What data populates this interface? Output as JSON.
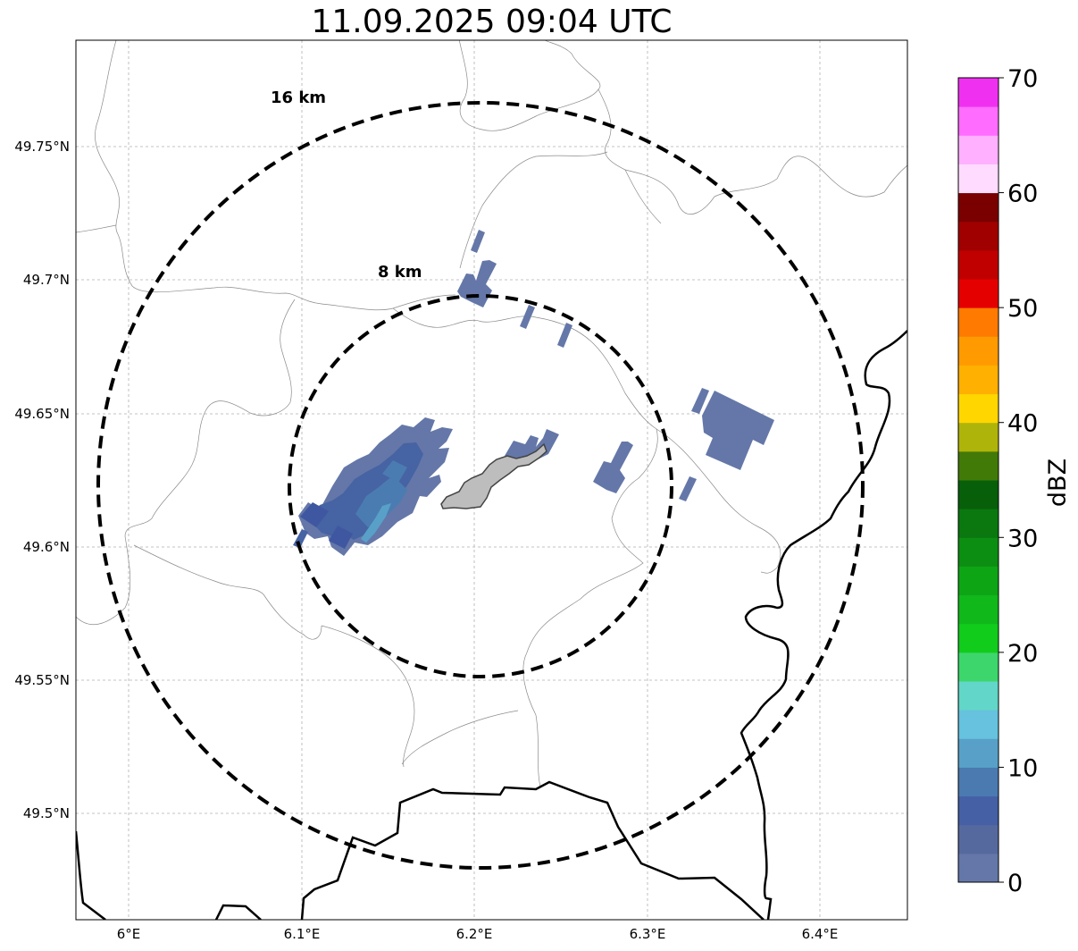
{
  "title": "11.09.2025 09:04 UTC",
  "map": {
    "lon_ticks": [
      "6°E",
      "6.1°E",
      "6.2°E",
      "6.3°E",
      "6.4°E"
    ],
    "lat_ticks": [
      "49.75°N",
      "49.7°N",
      "49.65°N",
      "49.6°N",
      "49.55°N",
      "49.5°N"
    ],
    "range_rings": [
      {
        "label": "8 km",
        "radius_km": 8
      },
      {
        "label": "16 km",
        "radius_km": 16
      }
    ],
    "colorbar": {
      "label": "dBZ",
      "tick_labels": [
        "0",
        "10",
        "20",
        "30",
        "40",
        "50",
        "60",
        "70"
      ],
      "min": 0,
      "max": 70,
      "colors": [
        "#6477a8",
        "#56699f",
        "#4560a5",
        "#4a7ab0",
        "#58a0c8",
        "#66c2de",
        "#62d6c8",
        "#3dd66c",
        "#12cc1c",
        "#10b81a",
        "#0ea515",
        "#0c8e12",
        "#0a780f",
        "#075f0a",
        "#427a08",
        "#afb40a",
        "#ffd600",
        "#ffb000",
        "#ff9a00",
        "#ff7a00",
        "#e50000",
        "#c00000",
        "#a00000",
        "#7a0000",
        "#ffdcff",
        "#ffb0ff",
        "#ff6cff",
        "#f030f0"
      ]
    }
  }
}
